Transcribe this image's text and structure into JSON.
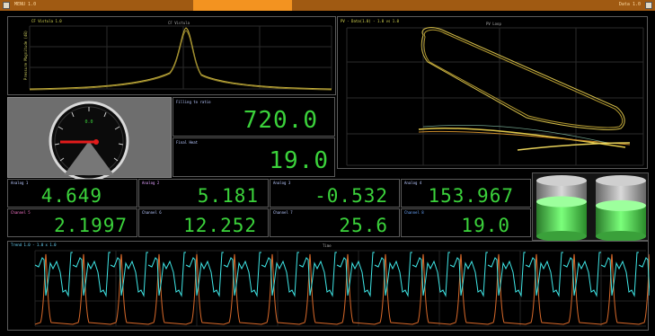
{
  "topbar": {
    "left_text": "MENU 1.0",
    "right_text": "Data 1.0"
  },
  "charts": {
    "spectrum": {
      "title": "CF Vistula",
      "ylabel": "Pressure Magnitude (dB)",
      "header": "CF Vistula 1.0"
    },
    "pv_loop": {
      "title": "PV Loop",
      "header": "PV - Data(1.0) - 1.0 vs 1.0"
    },
    "waveform": {
      "header": "Trend 1.0 - 1.0 x 1.0",
      "subtitle": "Time"
    }
  },
  "gauge": {
    "value_label": "0.0",
    "ticks": [
      "0",
      "500",
      "1000",
      "1500",
      "2000",
      "2500",
      "3000",
      "3500",
      "4000"
    ]
  },
  "readouts": {
    "large": [
      {
        "label": "Filling to ratio",
        "value": "720.0"
      },
      {
        "label": "Final Heat",
        "value": "19.0"
      }
    ],
    "row1": [
      {
        "label": "Analog 1",
        "value": "4.649"
      },
      {
        "label": "Analog 2",
        "value": "5.181"
      },
      {
        "label": "Analog 3",
        "value": "-0.532"
      },
      {
        "label": "Analog 4",
        "value": "153.967"
      }
    ],
    "row2": [
      {
        "label": "Channel 5",
        "value": "2.1997"
      },
      {
        "label": "Channel 6",
        "value": "12.252"
      },
      {
        "label": "Channel 7",
        "value": "25.6"
      },
      {
        "label": "Channel 8",
        "value": "19.0"
      }
    ]
  },
  "tanks": [
    {
      "level": 0.62
    },
    {
      "level": 0.55
    }
  ],
  "colors": {
    "accent": "#f39320",
    "digits": "#3bd23b",
    "cyan": "#3fe6e6",
    "orange": "#d8692a",
    "yellow": "#e3c94a"
  }
}
